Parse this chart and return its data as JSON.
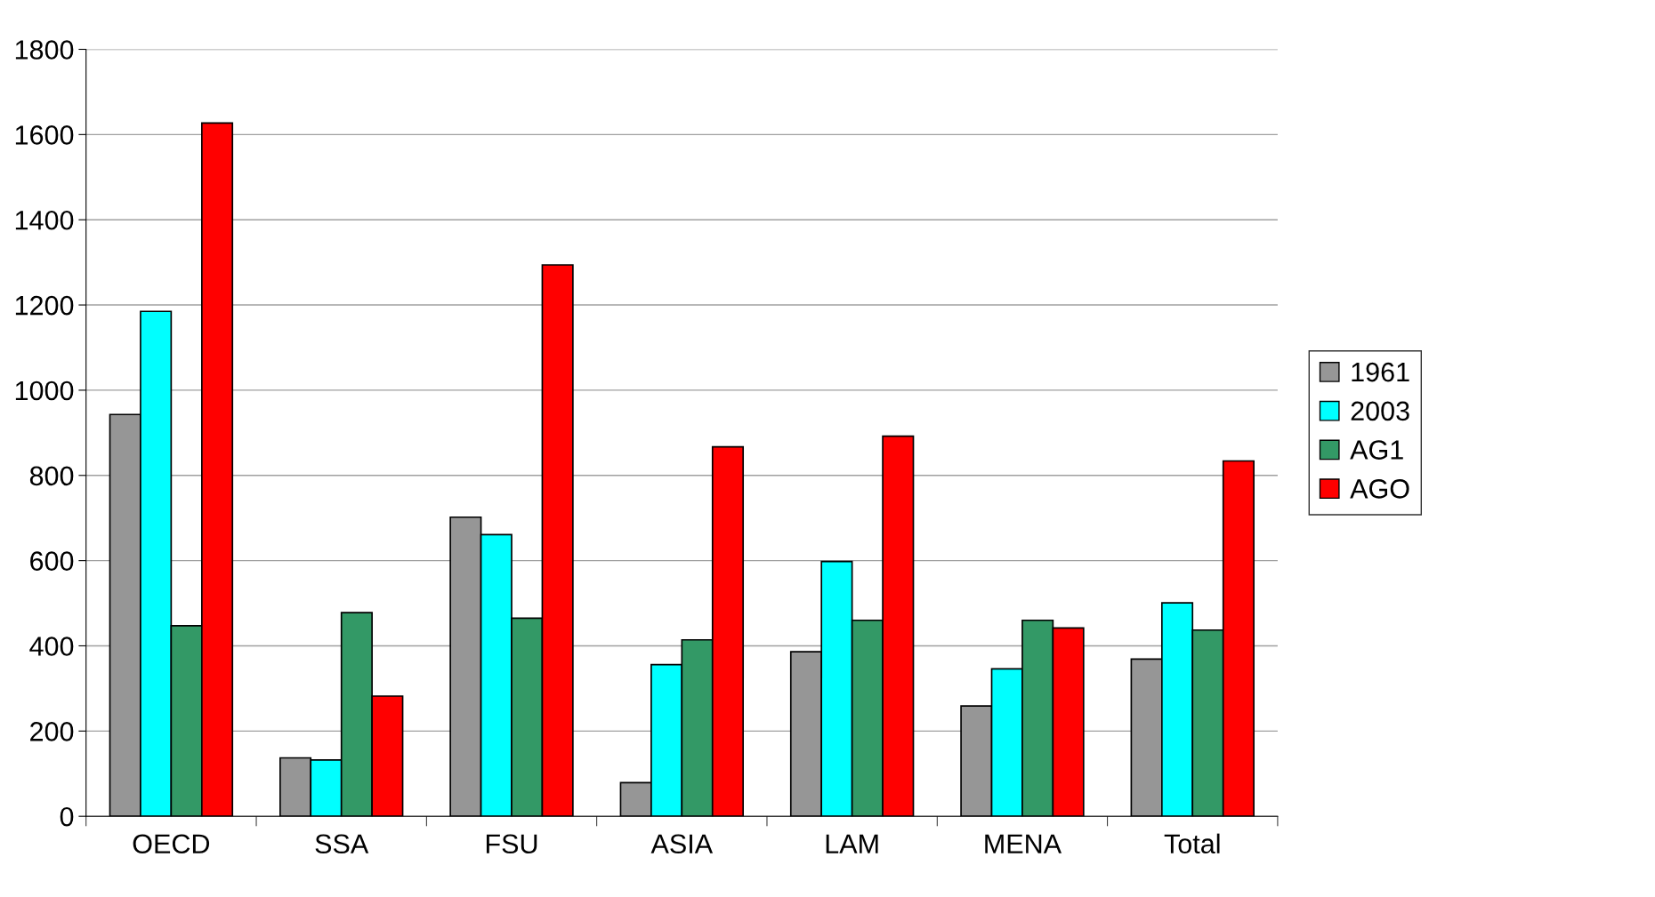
{
  "chart_data": {
    "type": "bar",
    "categories": [
      "OECD",
      "SSA",
      "FSU",
      "ASIA",
      "LAM",
      "MENA",
      "Total"
    ],
    "series": [
      {
        "name": "1961",
        "color": "#969696",
        "values": [
          943,
          137,
          702,
          79,
          386,
          259,
          369
        ]
      },
      {
        "name": "2003",
        "color": "#00ffff",
        "values": [
          1185,
          132,
          661,
          356,
          598,
          346,
          501
        ]
      },
      {
        "name": "AG1",
        "color": "#339966",
        "values": [
          447,
          478,
          465,
          414,
          460,
          460,
          437
        ]
      },
      {
        "name": "AGO",
        "color": "#ff0000",
        "values": [
          1627,
          282,
          1294,
          867,
          892,
          442,
          834
        ]
      }
    ],
    "ylim": [
      0,
      1800
    ],
    "yticks": [
      0,
      200,
      400,
      600,
      800,
      1000,
      1200,
      1400,
      1600,
      1800
    ],
    "grid": "y",
    "legend": "right"
  }
}
